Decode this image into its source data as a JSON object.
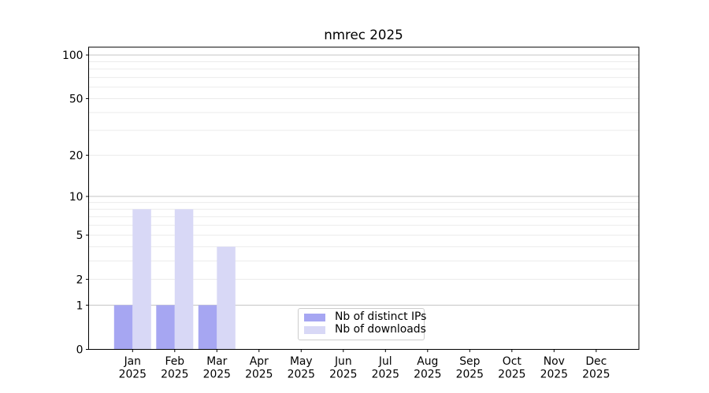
{
  "chart_data": {
    "type": "bar",
    "title": "nmrec 2025",
    "categories": [
      "Jan",
      "Feb",
      "Mar",
      "Apr",
      "May",
      "Jun",
      "Jul",
      "Aug",
      "Sep",
      "Oct",
      "Nov",
      "Dec"
    ],
    "x_tick_year": "2025",
    "series": [
      {
        "name": "Nb of distinct IPs",
        "color": "#a6a6f2",
        "values": [
          1,
          1,
          1,
          0,
          0,
          0,
          0,
          0,
          0,
          0,
          0,
          0
        ]
      },
      {
        "name": "Nb of downloads",
        "color": "#d8d8f6",
        "values": [
          8,
          8,
          4,
          0,
          0,
          0,
          0,
          0,
          0,
          0,
          0,
          0
        ]
      }
    ],
    "xlabel": "",
    "ylabel": "",
    "yscale": "log1p",
    "ylim": [
      0,
      113
    ],
    "y_tick_labels": [
      0,
      1,
      2,
      5,
      10,
      20,
      50,
      100
    ],
    "major_gridlines": [
      1,
      10,
      100
    ],
    "minor_gridlines": [
      2,
      3,
      4,
      5,
      6,
      7,
      8,
      9,
      20,
      30,
      40,
      50,
      60,
      70,
      80,
      90
    ],
    "grid": true,
    "legend_position": "lower center",
    "colors": {
      "axis": "#000000",
      "major_grid": "#c4c4c4",
      "minor_grid": "#ebebeb",
      "background": "#ffffff",
      "legend_border": "#cccccc"
    }
  }
}
